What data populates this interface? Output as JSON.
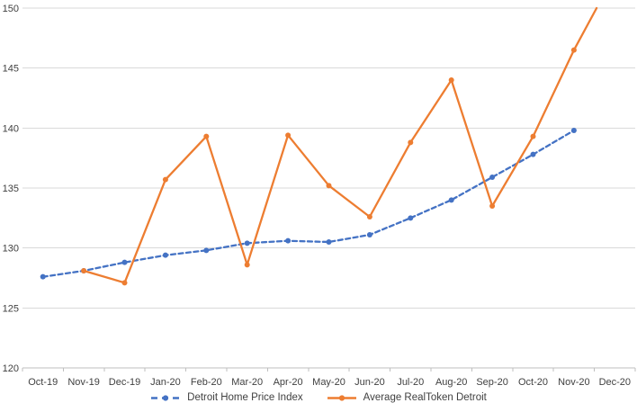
{
  "chart_data": {
    "type": "line",
    "title": "",
    "xlabel": "",
    "ylabel": "",
    "categories": [
      "Oct-19",
      "Nov-19",
      "Dec-19",
      "Jan-20",
      "Feb-20",
      "Mar-20",
      "Apr-20",
      "May-20",
      "Jun-20",
      "Jul-20",
      "Aug-20",
      "Sep-20",
      "Oct-20",
      "Nov-20",
      "Dec-20"
    ],
    "series": [
      {
        "name": "Detroit Home Price Index",
        "color": "#4472C4",
        "line_style": "dashed",
        "values": [
          127.6,
          128.1,
          128.8,
          129.4,
          129.8,
          130.4,
          130.6,
          130.5,
          131.1,
          132.5,
          134.0,
          135.9,
          137.8,
          139.8,
          null
        ]
      },
      {
        "name": "Average RealToken Detroit",
        "color": "#ED7D31",
        "line_style": "solid",
        "values": [
          null,
          128.1,
          127.1,
          135.7,
          139.3,
          128.6,
          139.4,
          135.2,
          132.6,
          138.8,
          144.0,
          133.5,
          139.3,
          146.5,
          152.8
        ]
      }
    ],
    "ylim": [
      120,
      150
    ],
    "ytick_step": 5,
    "ytick_labels": [
      "120",
      "125",
      "130",
      "135",
      "140",
      "145",
      "150"
    ],
    "grid": "horizontal",
    "gridline_color": "#d9d9d9",
    "axis_line_color": "#bfbfbf",
    "tick_text_color": "#404040",
    "legend_position": "bottom",
    "note": "Orange series rises above the plot maximum after Nov-20 and is clipped at 150"
  }
}
